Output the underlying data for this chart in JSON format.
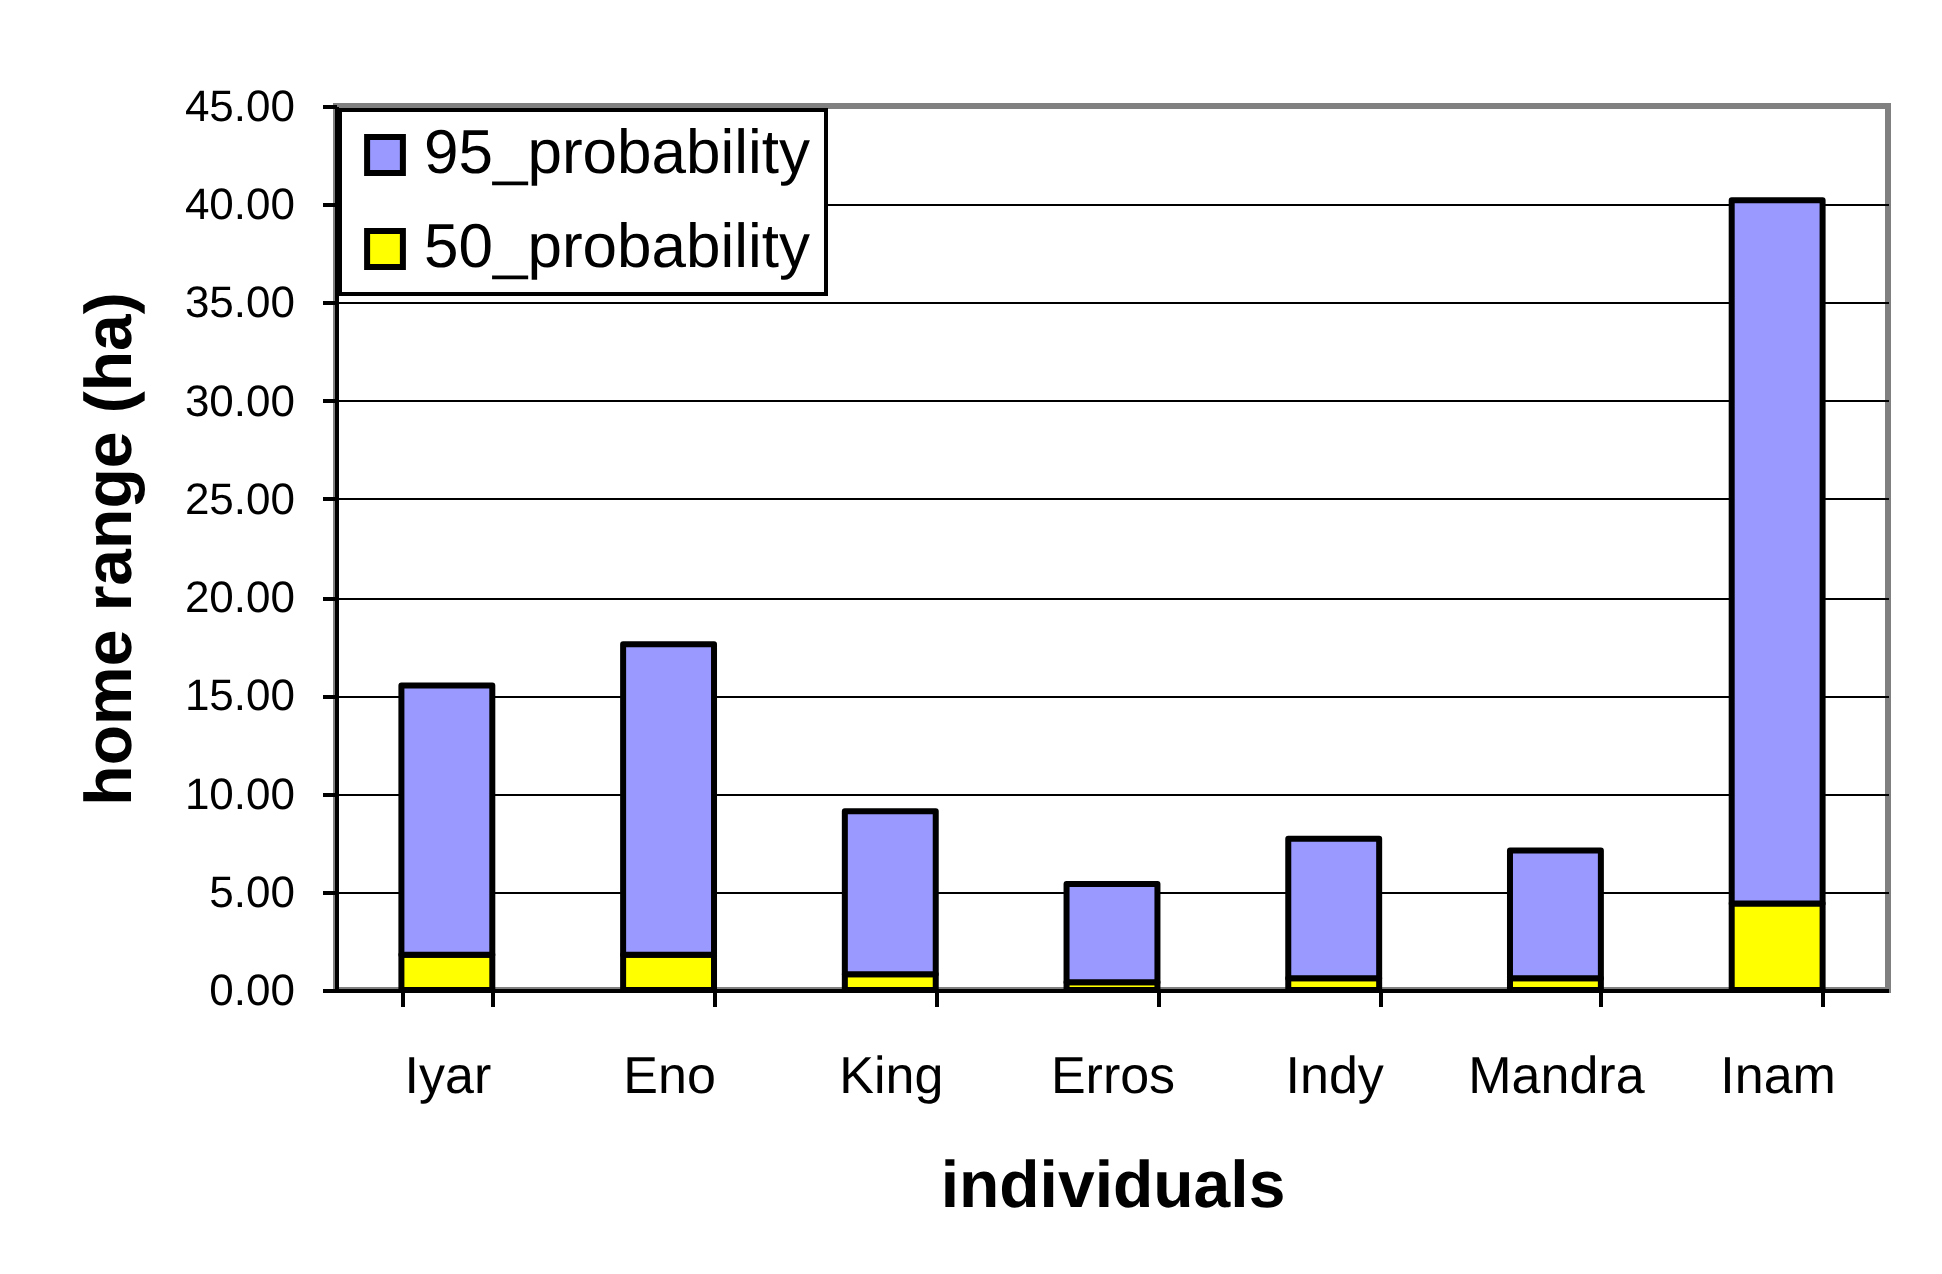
{
  "chart_data": {
    "type": "bar",
    "stacked": true,
    "xlabel": "individuals",
    "ylabel": "home range (ha)",
    "categories": [
      "Iyar",
      "Eno",
      "King",
      "Erros",
      "Indy",
      "Mandra",
      "Inam"
    ],
    "series": [
      {
        "name": "50_probability",
        "color": "#ffff00",
        "values": [
          1.8,
          1.8,
          0.8,
          0.4,
          0.6,
          0.6,
          4.4
        ]
      },
      {
        "name": "95_probability",
        "color": "#9999ff",
        "values": [
          13.7,
          15.8,
          8.3,
          5.0,
          7.1,
          6.5,
          35.8
        ]
      }
    ],
    "ylim": [
      0,
      45
    ],
    "yticks": [
      {
        "value": 0,
        "label": "0.00"
      },
      {
        "value": 5,
        "label": "5.00"
      },
      {
        "value": 10,
        "label": "10.00"
      },
      {
        "value": 15,
        "label": "15.00"
      },
      {
        "value": 20,
        "label": "20.00"
      },
      {
        "value": 25,
        "label": "25.00"
      },
      {
        "value": 30,
        "label": "30.00"
      },
      {
        "value": 35,
        "label": "35.00"
      },
      {
        "value": 40,
        "label": "40.00"
      },
      {
        "value": 45,
        "label": "45.00"
      }
    ],
    "grid": "y",
    "legend": "top left"
  }
}
